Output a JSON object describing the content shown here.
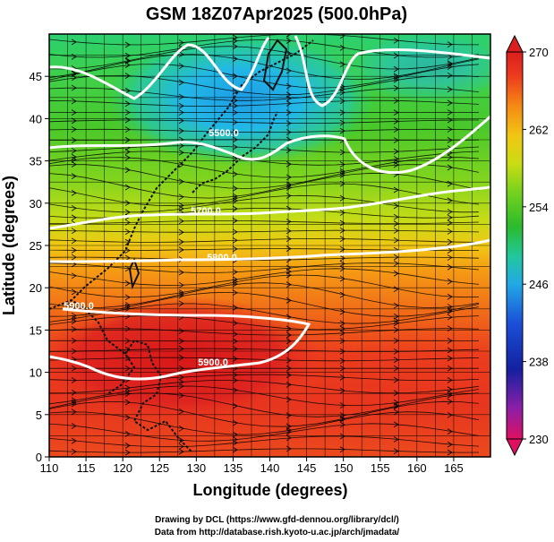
{
  "title": "GSM 18Z07Apr2025 (500.0hPa)",
  "map": {
    "xlabel": "Longitude (degrees)",
    "ylabel": "Latitude  (degrees)",
    "lon_range": [
      110,
      170
    ],
    "lat_range": [
      0,
      50
    ],
    "lon_ticks": [
      "110",
      "115",
      "120",
      "125",
      "130",
      "135",
      "140",
      "145",
      "150",
      "155",
      "160",
      "165"
    ],
    "lat_ticks": [
      "0",
      "5",
      "10",
      "15",
      "20",
      "25",
      "30",
      "35",
      "40",
      "45"
    ]
  },
  "contours": {
    "labels": [
      "5500.0",
      "5700.0",
      "5800.0",
      "5900.0",
      "5900.0"
    ]
  },
  "colorbar": {
    "min": 230,
    "max": 270,
    "tick_labels": [
      "270",
      "262",
      "254",
      "246",
      "238",
      "230"
    ],
    "colors": [
      "#e01060",
      "#8b1fa8",
      "#1420a0",
      "#1a50d8",
      "#23a8e6",
      "#21c7a0",
      "#2bbb2b",
      "#78d21e",
      "#c8dc14",
      "#f0c814",
      "#f58a14",
      "#ec3a1e",
      "#dc1e1e"
    ]
  },
  "credits": {
    "line1": "Drawing by DCL (https://www.gfd-dennou.org/library/dcl/)",
    "line2": "Data from http://database.rish.kyoto-u.ac.jp/arch/jmadata/"
  }
}
